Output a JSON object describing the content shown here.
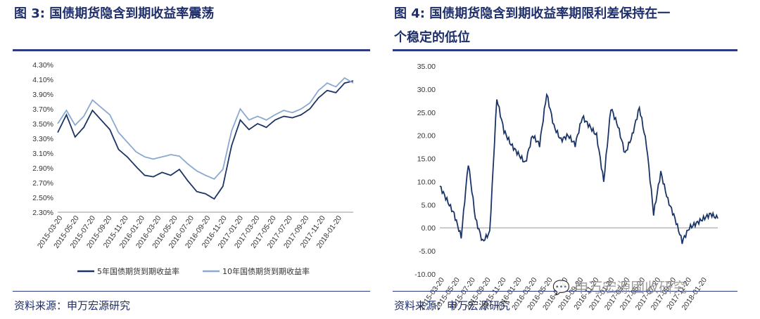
{
  "left": {
    "figure_label": "图 3:",
    "title": "国债期货隐含到期收益率震荡",
    "source": "资料来源：申万宏源研究",
    "chart_data": {
      "type": "line",
      "ylim": [
        0.023,
        0.043
      ],
      "y_ticks": [
        "4.30%",
        "4.10%",
        "3.90%",
        "3.70%",
        "3.50%",
        "3.30%",
        "3.10%",
        "2.90%",
        "2.70%",
        "2.50%",
        "2.30%"
      ],
      "x_ticks": [
        "2015-03-20",
        "2015-05-20",
        "2015-07-20",
        "2015-09-20",
        "2015-11-20",
        "2016-01-20",
        "2016-03-20",
        "2016-05-20",
        "2016-07-20",
        "2016-09-20",
        "2016-11-20",
        "2017-01-20",
        "2017-03-20",
        "2017-05-20",
        "2017-07-20",
        "2017-09-20",
        "2017-11-20",
        "2018-01-20"
      ],
      "series": [
        {
          "name": "5年国债期货到期收益率",
          "color": "#1a3466",
          "values": [
            3.38,
            3.62,
            3.32,
            3.45,
            3.68,
            3.55,
            3.42,
            3.15,
            3.05,
            2.92,
            2.8,
            2.78,
            2.84,
            2.8,
            2.88,
            2.72,
            2.58,
            2.55,
            2.48,
            2.65,
            3.2,
            3.55,
            3.42,
            3.5,
            3.45,
            3.55,
            3.6,
            3.58,
            3.62,
            3.7,
            3.85,
            3.95,
            3.92,
            4.05,
            4.08
          ]
        },
        {
          "name": "10年国债期货到期收益率",
          "color": "#8aa9d0",
          "values": [
            3.5,
            3.68,
            3.48,
            3.6,
            3.82,
            3.72,
            3.62,
            3.38,
            3.25,
            3.12,
            3.05,
            3.02,
            3.05,
            3.08,
            3.06,
            2.95,
            2.86,
            2.8,
            2.75,
            2.88,
            3.4,
            3.7,
            3.55,
            3.6,
            3.55,
            3.62,
            3.68,
            3.65,
            3.7,
            3.78,
            3.95,
            4.05,
            4.0,
            4.12,
            4.05
          ]
        }
      ]
    }
  },
  "right": {
    "figure_label": "图 4:",
    "title_line1": "国债期货隐含到期收益率期限利差保持在一",
    "title_line2": "个稳定的低位",
    "source": "资料来源：申万宏源研究",
    "chart_data": {
      "type": "line",
      "ylim": [
        -10,
        35
      ],
      "y_ticks": [
        "35.00",
        "30.00",
        "25.00",
        "20.00",
        "15.00",
        "10.00",
        "5.00",
        "0.00",
        "-5.00",
        "-10.00"
      ],
      "x_ticks": [
        "2015-03-20",
        "2015-05-20",
        "2015-07-20",
        "2015-09-20",
        "2015-11-20",
        "2016-01-20",
        "2016-03-20",
        "2016-05-20",
        "2016-07-20",
        "2016-09-20",
        "2016-11-20",
        "2017-01-20",
        "2017-03-20",
        "2017-05-20",
        "2017-07-20",
        "2017-09-20",
        "2017-11-20",
        "2018-01-20"
      ],
      "series": [
        {
          "name": "",
          "color": "#1a3466",
          "values": [
            9,
            6,
            3,
            -2,
            14,
            2,
            -3,
            -1,
            28,
            21,
            18,
            16,
            14,
            20,
            18,
            29,
            22,
            19,
            20,
            18,
            24,
            22,
            20,
            10,
            26,
            22,
            16,
            20,
            26,
            18,
            3,
            12,
            6,
            2,
            -3,
            0,
            1,
            2,
            3,
            2
          ]
        }
      ]
    }
  },
  "legend_left": {
    "s1": "5年国债期货到期收益率",
    "s2": "10年国债期货到期收益率"
  },
  "watermark": "申万宏源固收研究"
}
